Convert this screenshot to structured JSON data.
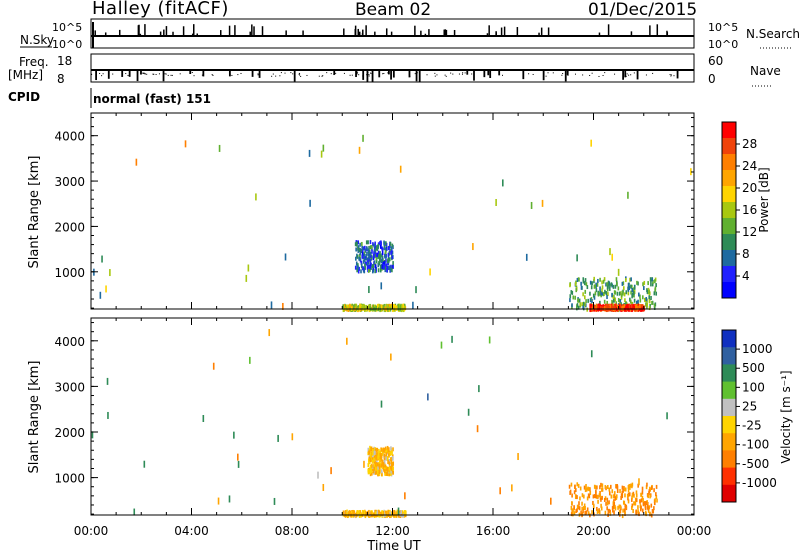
{
  "header": {
    "station": "Halley (fitACF)",
    "beam": "Beam 02",
    "date": "01/Dec/2015"
  },
  "strips": {
    "nsky_label": "N.Sky",
    "nsky_ticks": [
      "10^5",
      "10^0"
    ],
    "nsearch_label": "N.Search",
    "nsearch_ticks": [
      "10^5",
      "10^0"
    ],
    "freq_label": "Freq.",
    "freq_unit": "[MHz]",
    "freq_ticks": [
      "18",
      "8"
    ],
    "nave_label": "Nave",
    "nave_ticks": [
      "60",
      "0"
    ],
    "cpid_label": "CPID",
    "cpid_value": "normal (fast) 151"
  },
  "colorbars": {
    "power": {
      "label": "Power [dB]",
      "ticks": [
        "28",
        "24",
        "20",
        "16",
        "12",
        "8",
        "4"
      ],
      "colors": [
        "#ff0000",
        "#f0430a",
        "#ff7f00",
        "#ffa500",
        "#ffd400",
        "#a8c810",
        "#60b030",
        "#2e8b57",
        "#1e6aa0",
        "#2020ff",
        "#0000ff"
      ]
    },
    "velocity": {
      "label": "Velocity [m s⁻¹]",
      "ticks": [
        "1000",
        "500",
        "100",
        "25",
        "-25",
        "-100",
        "-500",
        "-1000"
      ],
      "colors": [
        "#1030c0",
        "#3060a0",
        "#2e8b57",
        "#60c030",
        "#c0c0c0",
        "#ffd400",
        "#ffa500",
        "#ff7f00",
        "#ff3000",
        "#e00000"
      ]
    }
  },
  "chart_data": [
    {
      "type": "heatmap",
      "title": "Power",
      "xlabel": "",
      "ylabel": "Slant Range [km]",
      "xlim": [
        "00:00",
        "24:00"
      ],
      "ylim": [
        180,
        4500
      ],
      "xticks": [
        "00:00",
        "04:00",
        "08:00",
        "12:00",
        "16:00",
        "20:00",
        "00:00"
      ],
      "yticks": [
        "1000",
        "2000",
        "3000",
        "4000"
      ],
      "regions": [
        {
          "t_start": 10.0,
          "t_end": 12.5,
          "range_start": 200,
          "range_end": 300,
          "value_db": 16
        },
        {
          "t_start": 10.5,
          "t_end": 12.0,
          "range_start": 1050,
          "range_end": 1700,
          "value_db": 6
        },
        {
          "t_start": 19.0,
          "t_end": 22.5,
          "range_start": 200,
          "range_end": 900,
          "value_db": 10
        },
        {
          "t_start": 19.8,
          "t_end": 22.0,
          "range_start": 200,
          "range_end": 300,
          "value_db": 28
        }
      ]
    },
    {
      "type": "heatmap",
      "title": "Velocity",
      "xlabel": "Time UT",
      "ylabel": "Slant Range [km]",
      "xlim": [
        "00:00",
        "24:00"
      ],
      "ylim": [
        180,
        4500
      ],
      "xticks": [
        "00:00",
        "04:00",
        "08:00",
        "12:00",
        "16:00",
        "20:00",
        "00:00"
      ],
      "yticks": [
        "1000",
        "2000",
        "3000",
        "4000"
      ],
      "regions": [
        {
          "t_start": 10.0,
          "t_end": 12.5,
          "range_start": 200,
          "range_end": 300,
          "value_ms": -100
        },
        {
          "t_start": 11.0,
          "t_end": 12.0,
          "range_start": 1100,
          "range_end": 1700,
          "value_ms": -100
        },
        {
          "t_start": 19.0,
          "t_end": 22.5,
          "range_start": 200,
          "range_end": 900,
          "value_ms": -500
        }
      ]
    }
  ]
}
